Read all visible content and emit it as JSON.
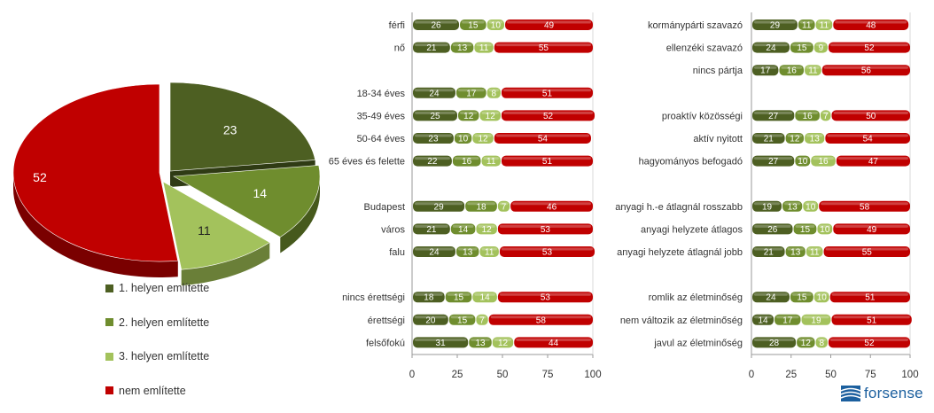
{
  "colors": {
    "c1": "#4d5f22",
    "c2": "#6f8d2e",
    "c3": "#a3c25c",
    "c4": "#c00000"
  },
  "legend": [
    {
      "label": "1. helyen említette",
      "color": "#4d5f22"
    },
    {
      "label": "2. helyen említette",
      "color": "#6f8d2e"
    },
    {
      "label": "3. helyen említette",
      "color": "#a3c25c"
    },
    {
      "label": "nem említette",
      "color": "#c00000"
    }
  ],
  "logo": {
    "text": "forsense"
  },
  "chart_data": [
    {
      "type": "pie",
      "slices": [
        {
          "name": "1. helyen említette",
          "value": 23
        },
        {
          "name": "2. helyen említette",
          "value": 14
        },
        {
          "name": "3. helyen említette",
          "value": 11
        },
        {
          "name": "nem említette",
          "value": 52
        }
      ]
    },
    {
      "type": "bar",
      "stacked": true,
      "orientation": "horizontal",
      "xlim": [
        0,
        100
      ],
      "ticks": [
        "0",
        "25",
        "50",
        "75",
        "100"
      ],
      "categories": [
        "férfi",
        "nő",
        "",
        "18-34 éves",
        "35-49 éves",
        "50-64 éves",
        "65 éves és felette",
        "",
        "Budapest",
        "város",
        "falu",
        "",
        "nincs érettségi",
        "érettségi",
        "felsőfokú"
      ],
      "series": [
        {
          "name": "1. helyen említette",
          "values": [
            26,
            21,
            null,
            24,
            25,
            23,
            22,
            null,
            29,
            21,
            24,
            null,
            18,
            20,
            31
          ]
        },
        {
          "name": "2. helyen említette",
          "values": [
            15,
            13,
            null,
            17,
            12,
            10,
            16,
            null,
            18,
            14,
            13,
            null,
            15,
            15,
            13
          ]
        },
        {
          "name": "3. helyen említette",
          "values": [
            10,
            11,
            null,
            8,
            12,
            12,
            11,
            null,
            7,
            12,
            11,
            null,
            14,
            7,
            12
          ]
        },
        {
          "name": "nem említette",
          "values": [
            49,
            55,
            null,
            51,
            52,
            54,
            51,
            null,
            46,
            53,
            53,
            null,
            53,
            58,
            44
          ]
        }
      ]
    },
    {
      "type": "bar",
      "stacked": true,
      "orientation": "horizontal",
      "xlim": [
        0,
        100
      ],
      "ticks": [
        "0",
        "25",
        "50",
        "75",
        "100"
      ],
      "categories": [
        "kormánypárti szavazó",
        "ellenzéki szavazó",
        "nincs pártja",
        "",
        "proaktív közösségi",
        "aktív nyitott",
        "hagyományos befogadó",
        "",
        "anyagi h.-e átlagnál rosszabb",
        "anyagi helyzete átlagos",
        "anyagi helyzete átlagnál jobb",
        "",
        "romlik az életminőség",
        "nem változik az életminőség",
        "javul az életminőség"
      ],
      "series": [
        {
          "name": "1. helyen említette",
          "values": [
            29,
            24,
            17,
            null,
            27,
            21,
            27,
            null,
            19,
            26,
            21,
            null,
            24,
            14,
            28
          ]
        },
        {
          "name": "2. helyen említette",
          "values": [
            11,
            15,
            16,
            null,
            16,
            12,
            10,
            null,
            13,
            15,
            13,
            null,
            15,
            17,
            12
          ]
        },
        {
          "name": "3. helyen említette",
          "values": [
            11,
            9,
            11,
            null,
            7,
            13,
            16,
            null,
            10,
            10,
            11,
            null,
            10,
            19,
            8
          ]
        },
        {
          "name": "nem említette",
          "values": [
            48,
            52,
            56,
            null,
            50,
            54,
            47,
            null,
            58,
            49,
            55,
            null,
            51,
            51,
            52
          ]
        }
      ]
    }
  ]
}
